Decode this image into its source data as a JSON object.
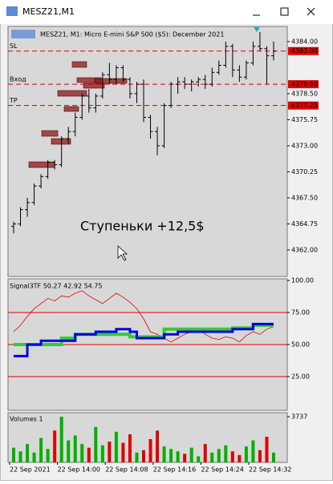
{
  "window": {
    "title": "MESZ21,M1"
  },
  "chart": {
    "header": "MESZ21, M1:  Micro E-mini S&P 500 ($5): December 2021",
    "annotation": "Ступеньки +12,5$",
    "price": {
      "type": "ohlc",
      "color": "#000000",
      "ylim": [
        4359.2,
        4385.6
      ],
      "yticks": [
        {
          "value": 4384,
          "label": "4384.00"
        },
        {
          "value": 4378.5,
          "label": "4378.50"
        },
        {
          "value": 4375.75,
          "label": "4375.75"
        },
        {
          "value": 4373,
          "label": "4373.00"
        },
        {
          "value": 4370.25,
          "label": "4370.25"
        },
        {
          "value": 4367.5,
          "label": "4367.50"
        },
        {
          "value": 4364.75,
          "label": "4364.75"
        },
        {
          "value": 4362,
          "label": "4362.00"
        }
      ],
      "levels": [
        {
          "name": "SL",
          "value": 4383,
          "label": "4383.00"
        },
        {
          "name": "Вход",
          "value": 4379.5,
          "label": "4379.50"
        },
        {
          "name": "TP",
          "value": 4377.25,
          "label": "4377.25"
        }
      ],
      "level_color": "#e00000",
      "bars": [
        [
          4364.5,
          4365,
          4363.75,
          4364.75
        ],
        [
          4364.75,
          4366.5,
          4364.5,
          4366.25
        ],
        [
          4366.25,
          4367.5,
          4365.5,
          4367
        ],
        [
          4367,
          4369,
          4366.75,
          4368.75
        ],
        [
          4368.75,
          4370,
          4368.5,
          4369.75
        ],
        [
          4369.75,
          4371.5,
          4369.5,
          4371.25
        ],
        [
          4371.25,
          4371.5,
          4370.5,
          4371
        ],
        [
          4371,
          4374,
          4370.75,
          4373.75
        ],
        [
          4373.75,
          4375,
          4373.25,
          4374.5
        ],
        [
          4374.5,
          4376.5,
          4374,
          4376
        ],
        [
          4376,
          4378.5,
          4375.75,
          4378.25
        ],
        [
          4378.25,
          4379,
          4376.5,
          4377
        ],
        [
          4377,
          4378.5,
          4376.5,
          4378.25
        ],
        [
          4378.25,
          4380.75,
          4378,
          4380.5
        ],
        [
          4380.5,
          4381.75,
          4379.5,
          4380
        ],
        [
          4380,
          4381.5,
          4379.5,
          4381.25
        ],
        [
          4381.25,
          4381.5,
          4379.75,
          4380
        ],
        [
          4380,
          4380.25,
          4378,
          4378.5
        ],
        [
          4378.5,
          4379.75,
          4377.5,
          4379.5
        ],
        [
          4379.5,
          4380,
          4375.5,
          4376
        ],
        [
          4376,
          4376.25,
          4373.75,
          4374.5
        ],
        [
          4374.5,
          4375,
          4372,
          4373
        ],
        [
          4373,
          4377.5,
          4372.75,
          4377.25
        ],
        [
          4377.25,
          4379.75,
          4377,
          4379.5
        ],
        [
          4379.5,
          4380.25,
          4378.5,
          4379.75
        ],
        [
          4379.75,
          4380.25,
          4379,
          4379.5
        ],
        [
          4379.5,
          4380,
          4378.75,
          4379.75
        ],
        [
          4379.75,
          4380.25,
          4379.25,
          4380
        ],
        [
          4380,
          4380.5,
          4379,
          4379.5
        ],
        [
          4379.5,
          4381.25,
          4379.25,
          4380.75
        ],
        [
          4380.75,
          4382,
          4380.5,
          4381.5
        ],
        [
          4381.5,
          4384,
          4381.25,
          4383.5
        ],
        [
          4383.5,
          4383.75,
          4380.25,
          4381
        ],
        [
          4381,
          4381.5,
          4379.75,
          4380.25
        ],
        [
          4380.25,
          4382,
          4380,
          4381.75
        ],
        [
          4381.75,
          4384,
          4381.5,
          4383.5
        ],
        [
          4383.5,
          4385,
          4383,
          4383.25
        ],
        [
          4383.25,
          4383.5,
          4379.5,
          4382.5
        ],
        [
          4382.5,
          4384,
          4382,
          4383
        ]
      ]
    },
    "indicator": {
      "title": "Signal3TF 50.27 42.92 54.75",
      "ylim": [
        0,
        100
      ],
      "yticks": [
        {
          "value": 100,
          "label": "100.00"
        },
        {
          "value": 75,
          "label": "75.00"
        },
        {
          "value": 50,
          "label": "50.00"
        },
        {
          "value": 25,
          "label": "25.00"
        }
      ],
      "levels": [
        75,
        50,
        25
      ],
      "level_color": "#e00000",
      "series": [
        {
          "color": "#e00000",
          "width": 0.8,
          "values": [
            60,
            65,
            72,
            78,
            82,
            86,
            84,
            88,
            87,
            90,
            92,
            88,
            85,
            82,
            86,
            90,
            87,
            83,
            78,
            70,
            60,
            58,
            55,
            52,
            55,
            58,
            60,
            62,
            58,
            55,
            54,
            56,
            55,
            52,
            57,
            60,
            58,
            62,
            64
          ]
        },
        {
          "color": "#33cc33",
          "width": 4,
          "values": [
            50,
            50,
            50,
            50,
            50,
            50,
            50,
            55,
            55,
            58,
            58,
            58,
            58,
            58,
            58,
            58,
            58,
            56,
            56,
            56,
            56,
            56,
            62,
            62,
            62,
            62,
            62,
            62,
            62,
            62,
            62,
            62,
            63,
            63,
            63,
            65,
            65,
            65,
            65
          ]
        },
        {
          "color": "#0000e0",
          "width": 3,
          "values": [
            41,
            41,
            50,
            50,
            53,
            53,
            53,
            53,
            53,
            58,
            58,
            58,
            60,
            60,
            60,
            62,
            62,
            60,
            55,
            55,
            55,
            55,
            58,
            58,
            60,
            60,
            60,
            60,
            60,
            60,
            60,
            60,
            62,
            62,
            62,
            66,
            66,
            66,
            66
          ]
        }
      ]
    },
    "volumes": {
      "title": "Volumes 1",
      "ylim": [
        0,
        3737
      ],
      "yticks": [
        3737
      ],
      "up_color": "#00b000",
      "down_color": "#e00000",
      "values": [
        1200,
        900,
        1500,
        800,
        2000,
        1100,
        2600,
        3737,
        1800,
        2200,
        1500,
        1200,
        2900,
        1400,
        1700,
        2500,
        1600,
        2300,
        800,
        1000,
        1900,
        2600,
        1300,
        1100,
        900,
        700,
        1200,
        500,
        1500,
        800,
        1100,
        1400,
        900,
        600,
        1300,
        1800,
        1000,
        2100,
        800
      ]
    },
    "time_labels": [
      "22 Sep 2021",
      "22 Sep 14:00",
      "22 Sep 14:08",
      "22 Sep 14:16",
      "22 Sep 14:24",
      "22 Sep 14:32"
    ]
  }
}
